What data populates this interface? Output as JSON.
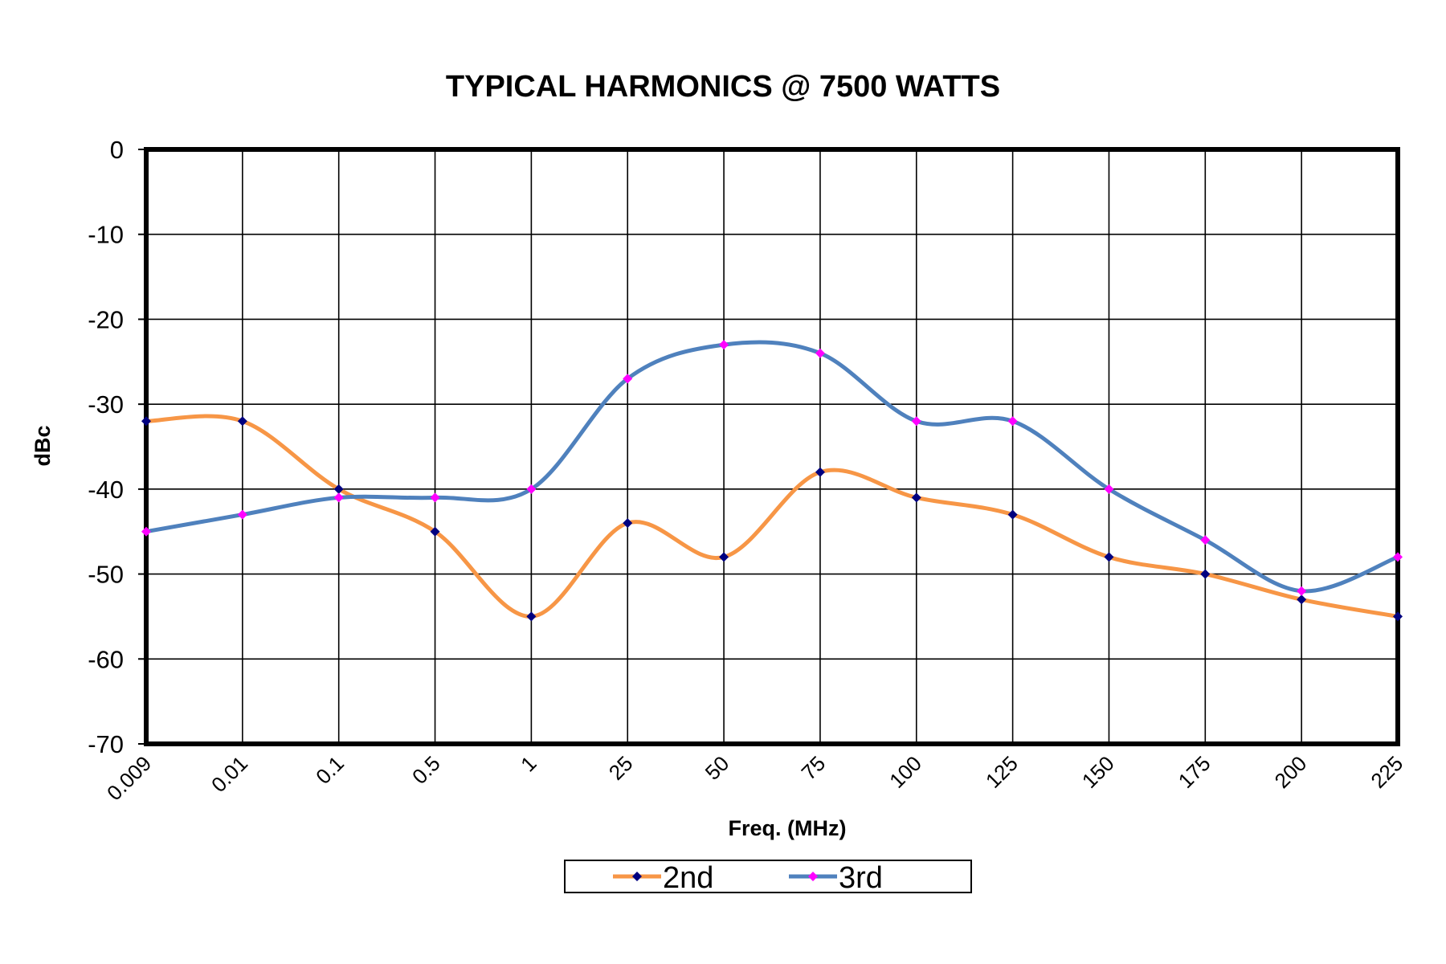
{
  "chart_data": {
    "type": "line",
    "title": "TYPICAL HARMONICS @ 7500 WATTS",
    "xlabel": "Freq. (MHz)",
    "ylabel": "dBc",
    "categories": [
      "0.009",
      "0.01",
      "0.1",
      "0.5",
      "1",
      "25",
      "50",
      "75",
      "100",
      "125",
      "150",
      "175",
      "200",
      "225"
    ],
    "ylim": [
      -70,
      0
    ],
    "yticks": [
      0,
      -10,
      -20,
      -30,
      -40,
      -50,
      -60,
      -70
    ],
    "grid": true,
    "legend": "bottom",
    "series": [
      {
        "name": "2nd",
        "color": "#f79646",
        "marker_color": "#000080",
        "values": [
          -32,
          -32,
          -40,
          -45,
          -55,
          -44,
          -48,
          -38,
          -41,
          -43,
          -48,
          -50,
          -53,
          -55
        ]
      },
      {
        "name": "3rd",
        "color": "#4f81bd",
        "marker_color": "#ff00ff",
        "values": [
          -45,
          -43,
          -41,
          -41,
          -40,
          -27,
          -23,
          -24,
          -32,
          -32,
          -40,
          -46,
          -52,
          -48
        ]
      }
    ]
  }
}
